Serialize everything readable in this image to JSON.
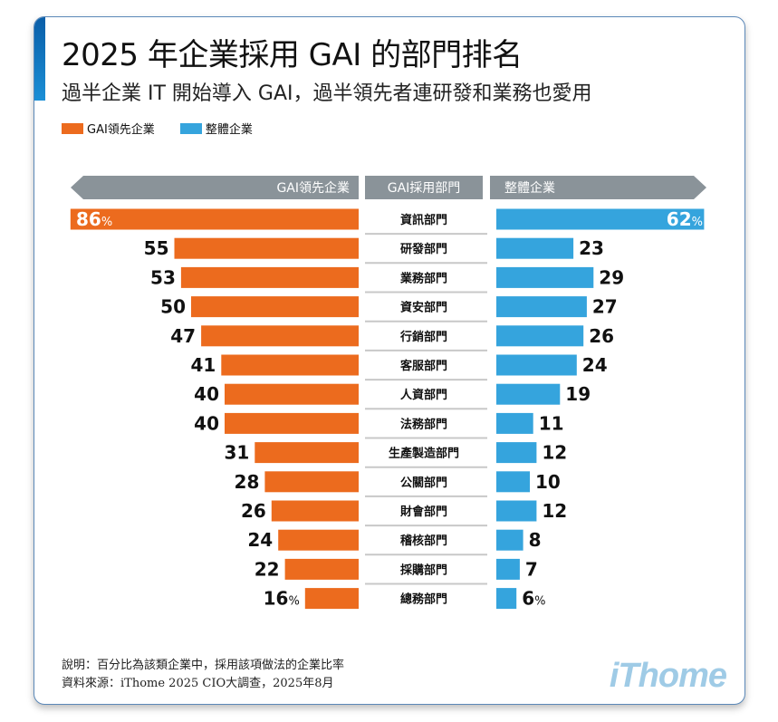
{
  "title": "2025 年企業採用 GAI 的部門排名",
  "subtitle": "過半企業 IT 開始導入 GAI，過半領先者連研發和業務也愛用",
  "colors": {
    "leader": "#ec6b1e",
    "overall": "#35a4dd",
    "header": "#8a9399",
    "accent": "#0a5ea8"
  },
  "footer": {
    "note": "說明：百分比為該類企業中，採用該項做法的企業比率",
    "source": "資料來源：iThome 2025 CIO大調查，2025年8月"
  },
  "logo": "iThome",
  "chart_data": {
    "type": "bar",
    "orientation": "horizontal-butterfly",
    "unit": "%",
    "header": {
      "left": "GAI領先企業",
      "center": "GAI採用部門",
      "right": "整體企業"
    },
    "legend": [
      "GAI領先企業",
      "整體企業"
    ],
    "legend_placement": "top-left",
    "categories": [
      "資訊部門",
      "研發部門",
      "業務部門",
      "資安部門",
      "行銷部門",
      "客服部門",
      "人資部門",
      "法務部門",
      "生產製造部門",
      "公關部門",
      "財會部門",
      "稽核部門",
      "採購部門",
      "總務部門"
    ],
    "series": [
      {
        "name": "GAI領先企業",
        "values": [
          86,
          55,
          53,
          50,
          47,
          41,
          40,
          40,
          31,
          28,
          26,
          24,
          22,
          16
        ]
      },
      {
        "name": "整體企業",
        "values": [
          62,
          23,
          29,
          27,
          26,
          24,
          19,
          11,
          12,
          10,
          12,
          8,
          7,
          6
        ]
      }
    ]
  }
}
